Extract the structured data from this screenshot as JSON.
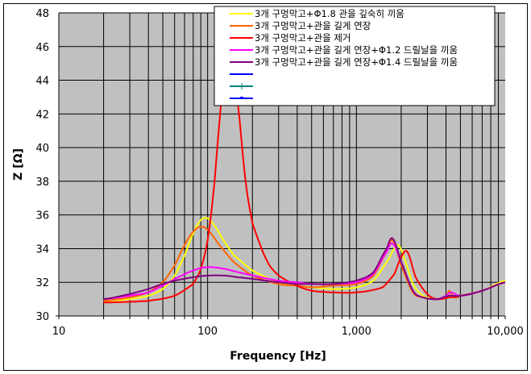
{
  "chart_data": {
    "type": "line",
    "title": "",
    "xlabel": "Frequency [Hz]",
    "ylabel": "Z [Ω]",
    "xscale": "log",
    "xlim": [
      10,
      10000
    ],
    "ylim": [
      30,
      48
    ],
    "x_ticks": [
      "10",
      "100",
      "1,000",
      "10,000"
    ],
    "y_ticks": [
      "30",
      "32",
      "34",
      "36",
      "38",
      "40",
      "42",
      "44",
      "46",
      "48"
    ],
    "grid": true,
    "plot_background": "#c0c0c0",
    "legend_position": "top-right-inside",
    "series": [
      {
        "name": "3개 구멍막고+Φ1.8 관을 깊숙히 끼움",
        "color": "#ffff00",
        "x": [
          20,
          30,
          40,
          50,
          60,
          70,
          80,
          90,
          100,
          110,
          130,
          150,
          200,
          300,
          400,
          500,
          700,
          1000,
          1300,
          1600,
          1900,
          2100,
          2400,
          2800,
          3500,
          4200,
          5000,
          7000,
          10000
        ],
        "y": [
          30.9,
          31.0,
          31.2,
          31.6,
          32.4,
          33.6,
          34.9,
          35.7,
          35.8,
          35.4,
          34.4,
          33.6,
          32.7,
          32.0,
          31.8,
          31.7,
          31.6,
          31.7,
          32.1,
          33.2,
          34.2,
          33.4,
          31.9,
          31.2,
          31.0,
          31.1,
          31.2,
          31.5,
          32.1
        ]
      },
      {
        "name": "3개 구멍막고+관을 길게 연장",
        "color": "#ff6600",
        "x": [
          20,
          30,
          40,
          50,
          60,
          70,
          80,
          90,
          100,
          120,
          150,
          200,
          300,
          400,
          500,
          700,
          1000,
          1300,
          1600,
          1750,
          2000,
          2400,
          2800,
          3500,
          4000,
          4200,
          4500,
          5000,
          7000,
          10000
        ],
        "y": [
          30.9,
          31.1,
          31.4,
          32.0,
          33.0,
          34.2,
          35.0,
          35.3,
          35.1,
          34.2,
          33.2,
          32.4,
          31.9,
          31.8,
          31.7,
          31.8,
          31.9,
          32.4,
          33.8,
          34.5,
          33.0,
          31.4,
          31.1,
          31.0,
          31.1,
          31.5,
          31.1,
          31.2,
          31.5,
          32.0
        ]
      },
      {
        "name": "3개 구멍막고+관을 제거",
        "color": "#ff0000",
        "x": [
          20,
          40,
          60,
          80,
          90,
          100,
          110,
          120,
          130,
          140,
          150,
          160,
          180,
          200,
          250,
          300,
          400,
          500,
          700,
          1000,
          1500,
          1800,
          2000,
          2200,
          2500,
          3000,
          3500,
          4200,
          5000,
          7000,
          10000
        ],
        "y": [
          30.8,
          30.9,
          31.2,
          31.9,
          32.8,
          34.5,
          37.5,
          41.5,
          44.8,
          46.5,
          45.2,
          42.5,
          38.0,
          35.5,
          33.3,
          32.4,
          31.8,
          31.5,
          31.4,
          31.4,
          31.7,
          32.5,
          33.5,
          33.8,
          32.3,
          31.3,
          31.0,
          31.1,
          31.2,
          31.5,
          32.0
        ]
      },
      {
        "name": "3개 구멍막고+관을 길게 연장+Φ1.2 드릴날을 끼움",
        "color": "#ff00ff",
        "x": [
          20,
          30,
          40,
          50,
          60,
          80,
          100,
          130,
          160,
          200,
          300,
          400,
          500,
          700,
          1000,
          1300,
          1600,
          1750,
          2000,
          2400,
          2800,
          3500,
          4000,
          4300,
          5000,
          7000,
          10000
        ],
        "y": [
          31.0,
          31.2,
          31.4,
          31.8,
          32.2,
          32.7,
          32.9,
          32.8,
          32.6,
          32.4,
          32.1,
          32.0,
          31.9,
          31.9,
          32.0,
          32.5,
          33.8,
          34.3,
          33.2,
          31.5,
          31.1,
          31.0,
          31.2,
          31.4,
          31.2,
          31.5,
          32.0
        ]
      },
      {
        "name": "3개 구멍막고+관을 길게 연장+Φ1.4 드릴날을 끼움",
        "color": "#800080",
        "x": [
          20,
          30,
          40,
          50,
          60,
          80,
          100,
          130,
          160,
          200,
          300,
          400,
          500,
          700,
          1000,
          1300,
          1600,
          1750,
          2000,
          2400,
          2800,
          3500,
          4200,
          5000,
          7000,
          10000
        ],
        "y": [
          31.0,
          31.3,
          31.6,
          31.9,
          32.1,
          32.3,
          32.4,
          32.4,
          32.3,
          32.2,
          32.0,
          31.9,
          31.9,
          31.9,
          32.1,
          32.6,
          34.0,
          34.6,
          33.2,
          31.5,
          31.1,
          31.0,
          31.2,
          31.2,
          31.5,
          32.0
        ]
      },
      {
        "name": "",
        "color": "#0000ff",
        "x": [],
        "y": []
      },
      {
        "name": "",
        "color": "#008080",
        "marker": "plus",
        "x": [],
        "y": []
      },
      {
        "name": "",
        "color": "#0000ff",
        "marker": "dash",
        "x": [],
        "y": []
      }
    ]
  }
}
